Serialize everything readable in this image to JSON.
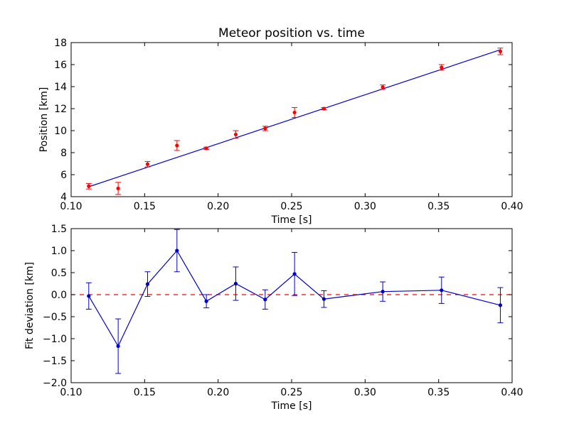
{
  "chart_data": [
    {
      "type": "scatter",
      "title": "Meteor position vs. time",
      "xlabel": "Time [s]",
      "ylabel": "Position [km]",
      "xlim": [
        0.1,
        0.4
      ],
      "ylim": [
        4,
        18
      ],
      "xticks": [
        "0.10",
        "0.15",
        "0.20",
        "0.25",
        "0.30",
        "0.35",
        "0.40"
      ],
      "yticks": [
        "4",
        "6",
        "8",
        "10",
        "12",
        "14",
        "16",
        "18"
      ],
      "grid": false,
      "colors": {
        "points": "#ff0000",
        "fit": "#0000cc"
      },
      "series": [
        {
          "kind": "points-with-error",
          "x": [
            0.112,
            0.132,
            0.152,
            0.172,
            0.192,
            0.212,
            0.232,
            0.252,
            0.272,
            0.312,
            0.352,
            0.392
          ],
          "y": [
            4.95,
            4.75,
            6.95,
            8.65,
            8.4,
            9.65,
            10.2,
            11.65,
            12.0,
            13.95,
            15.75,
            17.2
          ],
          "yerr": [
            0.25,
            0.55,
            0.25,
            0.45,
            0.1,
            0.35,
            0.2,
            0.45,
            0.1,
            0.2,
            0.25,
            0.3
          ]
        },
        {
          "kind": "fit-line",
          "x": [
            0.112,
            0.392
          ],
          "y": [
            4.9,
            17.35
          ]
        }
      ]
    },
    {
      "type": "line",
      "title": "",
      "xlabel": "Time [s]",
      "ylabel": "Fit deviation [km]",
      "xlim": [
        0.1,
        0.4
      ],
      "ylim": [
        -2.0,
        1.5
      ],
      "xticks": [
        "0.10",
        "0.15",
        "0.20",
        "0.25",
        "0.30",
        "0.35",
        "0.40"
      ],
      "yticks": [
        "−2.0",
        "−1.5",
        "−1.0",
        "−0.5",
        "0.0",
        "0.5",
        "1.0",
        "1.5"
      ],
      "yticks_values": [
        -2.0,
        -1.5,
        -1.0,
        -0.5,
        0.0,
        0.5,
        1.0,
        1.5
      ],
      "grid": false,
      "colors": {
        "series": "#0000cc",
        "reference": "#ff0000"
      },
      "reference_line": {
        "y": 0.0,
        "style": "dashed"
      },
      "series": [
        {
          "x": [
            0.112,
            0.132,
            0.152,
            0.172,
            0.192,
            0.212,
            0.232,
            0.252,
            0.272,
            0.312,
            0.352,
            0.392
          ],
          "y": [
            -0.03,
            -1.17,
            0.24,
            1.0,
            -0.15,
            0.25,
            -0.11,
            0.47,
            -0.1,
            0.07,
            0.1,
            -0.24
          ],
          "yerr": [
            0.3,
            0.62,
            0.28,
            0.48,
            0.15,
            0.38,
            0.22,
            0.49,
            0.19,
            0.22,
            0.3,
            0.4
          ]
        }
      ]
    }
  ]
}
